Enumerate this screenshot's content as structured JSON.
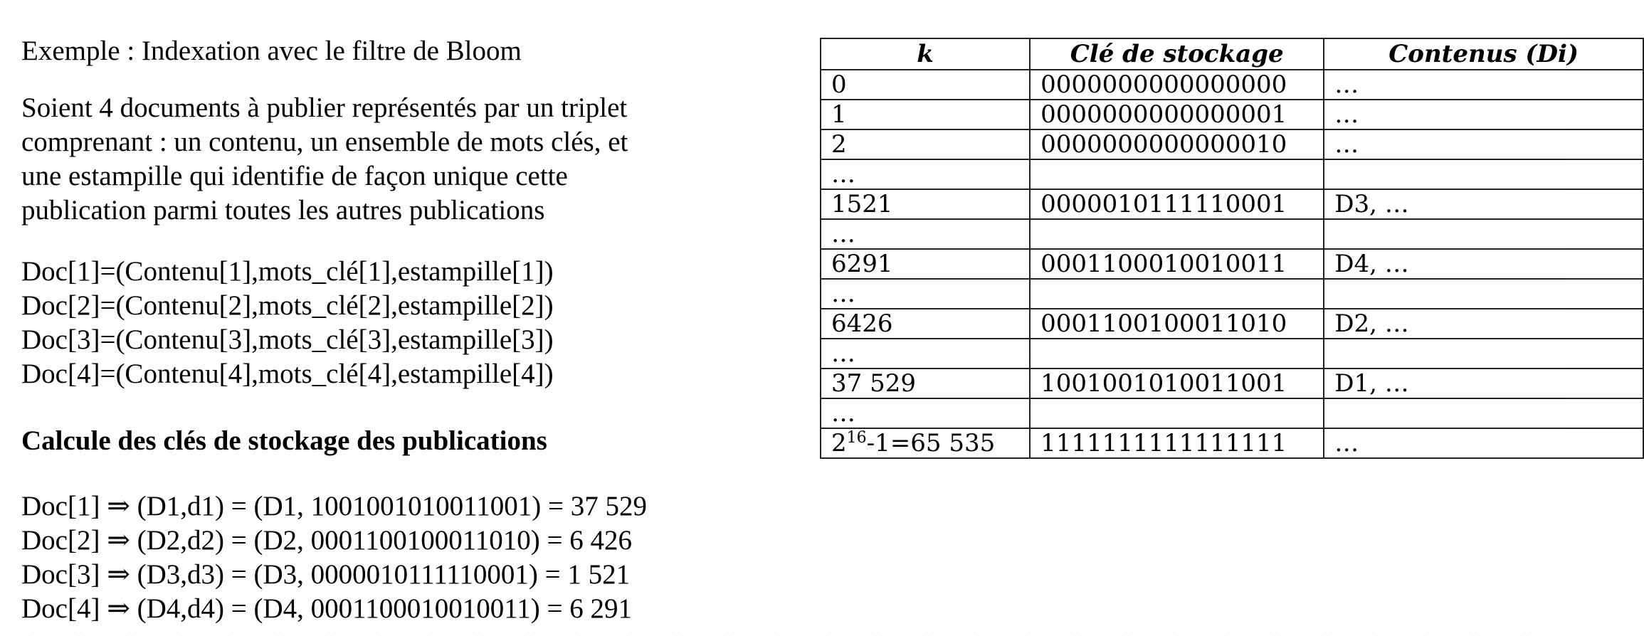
{
  "slide": {
    "title": "Exemple : Indexation avec le filtre de Bloom",
    "intro_lines": [
      "Soient 4 documents à publier représentés par un triplet",
      "comprenant : un contenu, un ensemble de mots clés, et",
      "une estampille qui identifie de façon unique cette",
      "publication parmi toutes les autres publications"
    ],
    "documents": [
      "Doc[1]=(Contenu[1],mots_clé[1],estampille[1])",
      "Doc[2]=(Contenu[2],mots_clé[2],estampille[2])",
      "Doc[3]=(Contenu[3],mots_clé[3],estampille[3])",
      "Doc[4]=(Contenu[4],mots_clé[4],estampille[4])"
    ],
    "calc_title": "Calcule des clés de stockage des publications",
    "key_lines": [
      "Doc[1] ⇒ (D1,d1) = (D1, 1001001010011001) = 37 529",
      "Doc[2] ⇒ (D2,d2) = (D2, 0001100100011010) = 6 426",
      "Doc[3] ⇒ (D3,d3) = (D3, 0000010111110001) = 1 521",
      "Doc[4] ⇒ (D4,d4) = (D4, 0001100010010011) = 6 291"
    ]
  },
  "table": {
    "headers": [
      "k",
      "Clé de stockage",
      "Contenus (Di)"
    ],
    "rows": [
      [
        "0",
        "0000000000000000",
        "…"
      ],
      [
        "1",
        "0000000000000001",
        "…"
      ],
      [
        "2",
        "0000000000000010",
        "…"
      ],
      [
        "…",
        "",
        ""
      ],
      [
        "1521",
        "0000010111110001",
        "D3, …"
      ],
      [
        "…",
        "",
        ""
      ],
      [
        "6291",
        "0001100010010011",
        "D4, …"
      ],
      [
        "…",
        "",
        ""
      ],
      [
        "6426",
        "0001100100011010",
        "D2, …"
      ],
      [
        "…",
        "",
        ""
      ],
      [
        "37 529",
        "1001001010011001",
        "D1, …"
      ],
      [
        "…",
        "",
        ""
      ]
    ],
    "last_row": {
      "k_base": "2",
      "k_exp": "16",
      "k_rest": "-1=65 535",
      "key": "1111111111111111",
      "content": "…"
    }
  }
}
